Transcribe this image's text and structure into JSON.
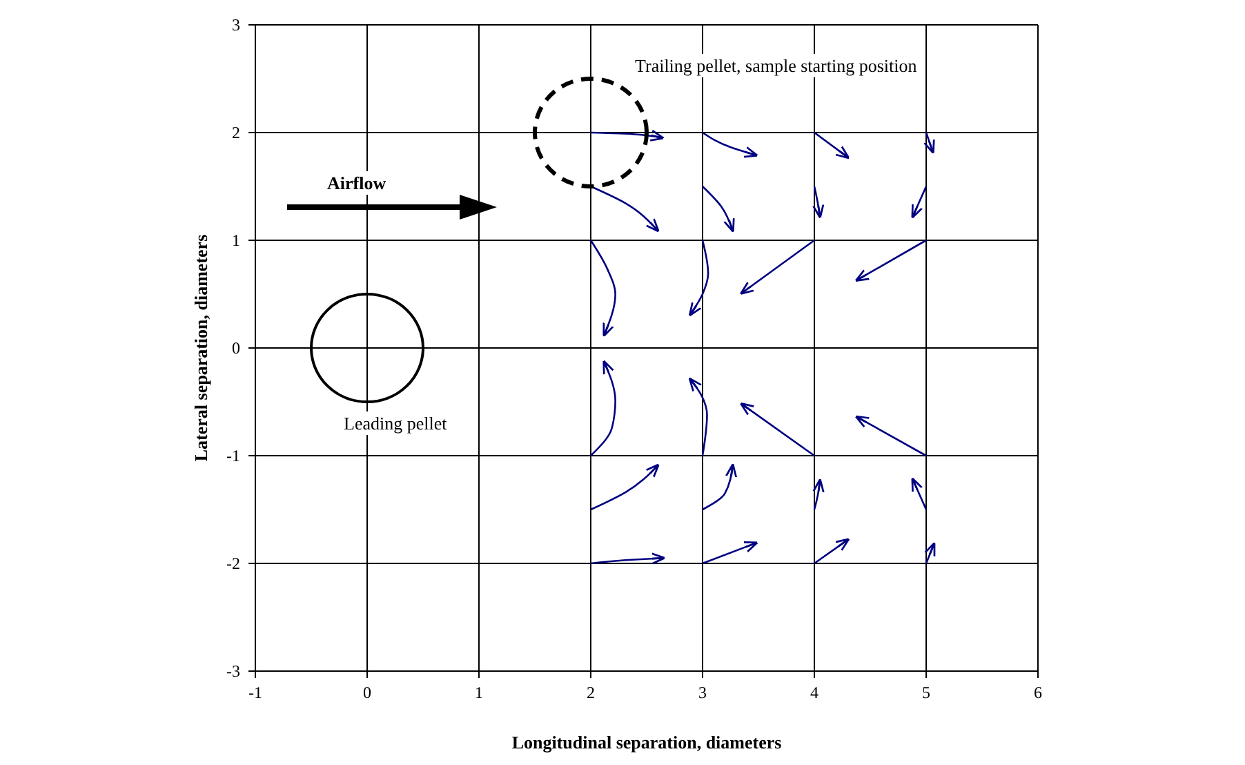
{
  "chart_data": {
    "type": "line",
    "xlabel": "Longitudinal separation, diameters",
    "ylabel": "Lateral separation, diameters",
    "xlim": [
      -1,
      6
    ],
    "xticks": [
      -1,
      0,
      1,
      2,
      3,
      4,
      5,
      6
    ],
    "ylim": [
      -3,
      3
    ],
    "yticks": [
      -3,
      -2,
      -1,
      0,
      1,
      2,
      3
    ],
    "grid": true,
    "marker": "none",
    "line_style": "solid",
    "annotations": [
      "Airflow",
      "Leading pellet",
      "Trailing pellet, sample starting position"
    ],
    "series": [
      {
        "color": "#000080",
        "x": [
          2,
          2.3,
          2.64
        ],
        "values": [
          2,
          1.99,
          1.95
        ]
      },
      {
        "color": "#000080",
        "x": [
          2,
          2.3,
          2.6
        ],
        "values": [
          1.5,
          1.35,
          1.09
        ]
      },
      {
        "color": "#000080",
        "x": [
          3,
          3.26,
          3.48
        ],
        "values": [
          2,
          1.86,
          1.79
        ]
      },
      {
        "color": "#000080",
        "x": [
          3,
          3.17,
          3.27
        ],
        "values": [
          1.5,
          1.31,
          1.09
        ]
      },
      {
        "color": "#000080",
        "x": [
          4,
          4.3
        ],
        "values": [
          2,
          1.77
        ]
      },
      {
        "color": "#000080",
        "x": [
          4,
          4.03,
          4.05
        ],
        "values": [
          1.5,
          1.35,
          1.22
        ]
      },
      {
        "color": "#000080",
        "x": [
          5,
          5.06
        ],
        "values": [
          2,
          1.82
        ]
      },
      {
        "color": "#000080",
        "x": [
          5,
          4.88
        ],
        "values": [
          1.5,
          1.22
        ]
      },
      {
        "color": "#000080",
        "x": [
          2,
          2.15,
          2.22,
          2.12
        ],
        "values": [
          1,
          0.73,
          0.5,
          0.12
        ]
      },
      {
        "color": "#000080",
        "x": [
          3,
          3.05,
          3.0,
          2.89
        ],
        "values": [
          1,
          0.69,
          0.5,
          0.31
        ]
      },
      {
        "color": "#000080",
        "x": [
          4,
          3.35
        ],
        "values": [
          1,
          0.51
        ]
      },
      {
        "color": "#000080",
        "x": [
          5,
          4.38
        ],
        "values": [
          1,
          0.63
        ]
      },
      {
        "color": "#000080",
        "x": [
          2,
          2.19,
          2.22,
          2.12
        ],
        "values": [
          -1,
          -0.74,
          -0.49,
          -0.13
        ]
      },
      {
        "color": "#000080",
        "x": [
          3,
          3.04,
          2.99,
          2.89
        ],
        "values": [
          -1,
          -0.62,
          -0.44,
          -0.29
        ]
      },
      {
        "color": "#000080",
        "x": [
          4,
          3.35
        ],
        "values": [
          -1,
          -0.52
        ]
      },
      {
        "color": "#000080",
        "x": [
          5,
          4.38
        ],
        "values": [
          -1,
          -0.64
        ]
      },
      {
        "color": "#000080",
        "x": [
          2,
          2.31,
          2.6
        ],
        "values": [
          -1.5,
          -1.34,
          -1.09
        ]
      },
      {
        "color": "#000080",
        "x": [
          3,
          3.2,
          3.27
        ],
        "values": [
          -1.5,
          -1.35,
          -1.09
        ]
      },
      {
        "color": "#000080",
        "x": [
          4,
          4.03,
          4.05
        ],
        "values": [
          -1.5,
          -1.37,
          -1.23
        ]
      },
      {
        "color": "#000080",
        "x": [
          5,
          4.88
        ],
        "values": [
          -1.5,
          -1.22
        ]
      },
      {
        "color": "#000080",
        "x": [
          2,
          2.31,
          2.65
        ],
        "values": [
          -2,
          -1.97,
          -1.95
        ]
      },
      {
        "color": "#000080",
        "x": [
          3,
          3.48
        ],
        "values": [
          -2,
          -1.81
        ]
      },
      {
        "color": "#000080",
        "x": [
          4,
          4.3
        ],
        "values": [
          -2,
          -1.78
        ]
      },
      {
        "color": "#000080",
        "x": [
          5,
          5.07
        ],
        "values": [
          -2,
          -1.82
        ]
      }
    ]
  }
}
